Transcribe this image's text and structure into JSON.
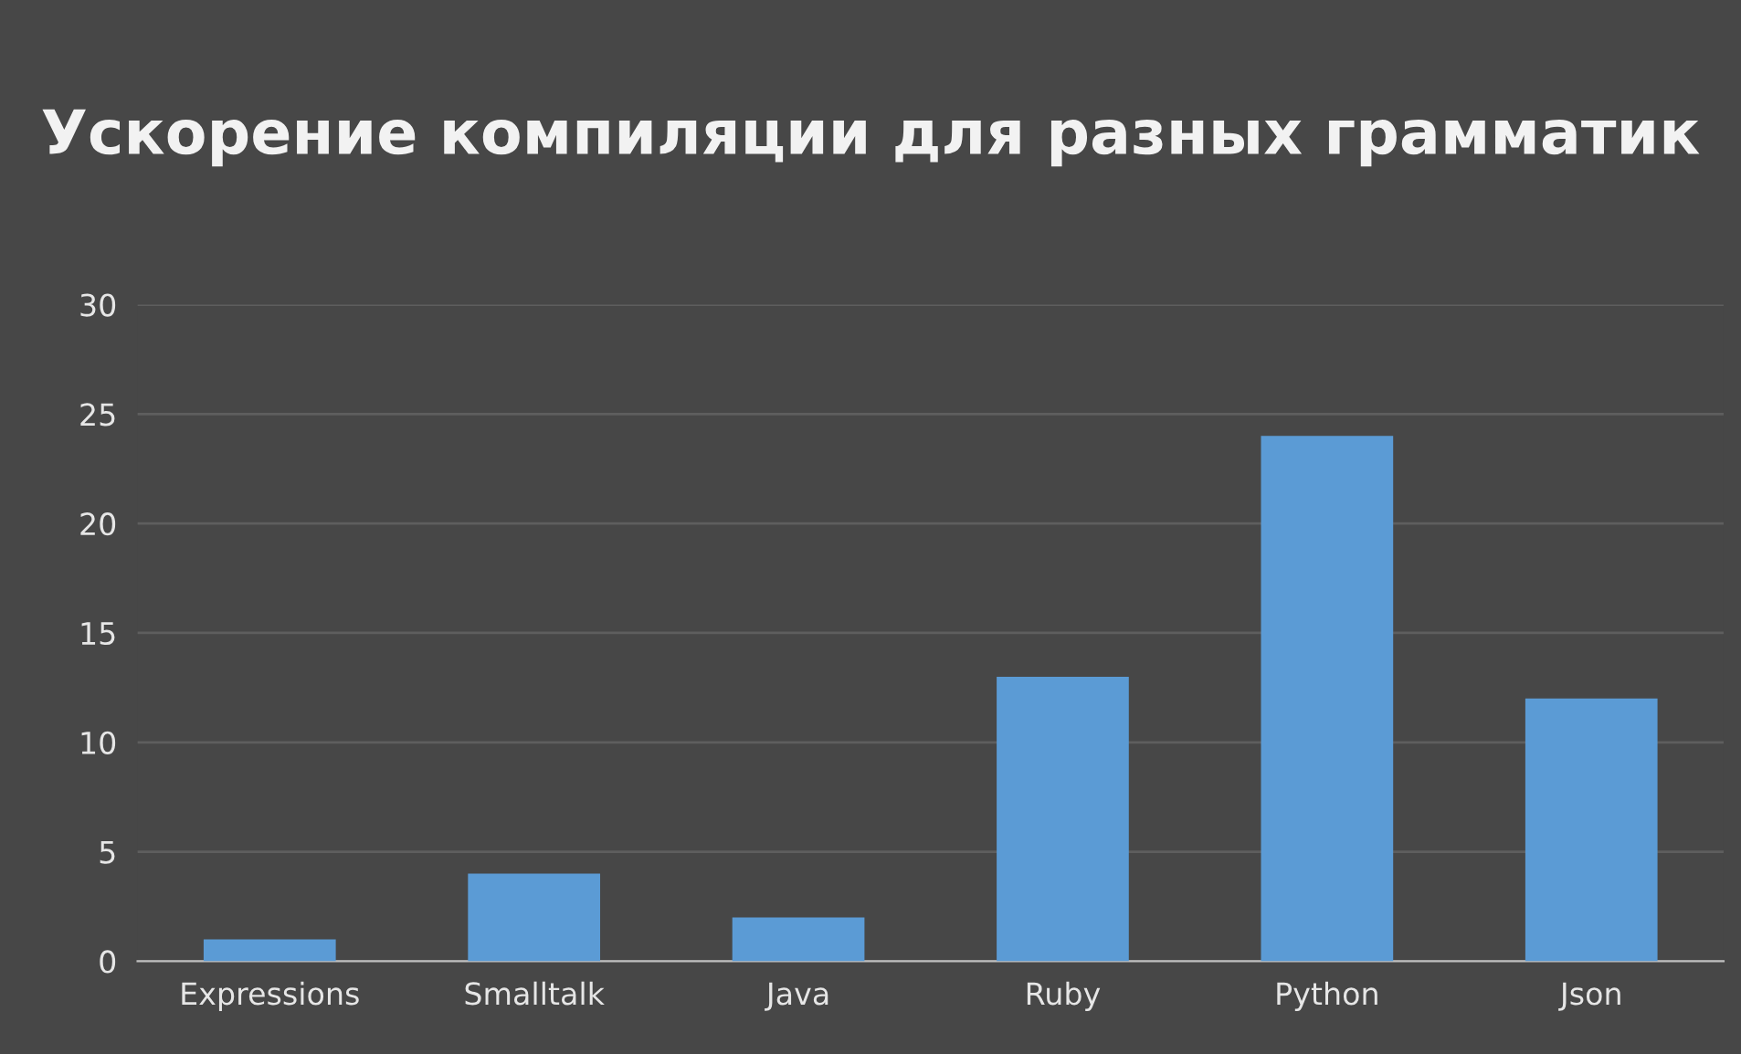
{
  "chart_data": {
    "type": "bar",
    "title": "Ускорение компиляции для разных грамматик",
    "categories": [
      "Expressions",
      "Smalltalk",
      "Java",
      "Ruby",
      "Python",
      "Json"
    ],
    "values": [
      1,
      4,
      2,
      13,
      24,
      12
    ],
    "color": "#5b9bd5",
    "ylim": [
      0,
      30
    ],
    "yticks": [
      0,
      5,
      10,
      15,
      20,
      25,
      30
    ],
    "grid": "y"
  }
}
